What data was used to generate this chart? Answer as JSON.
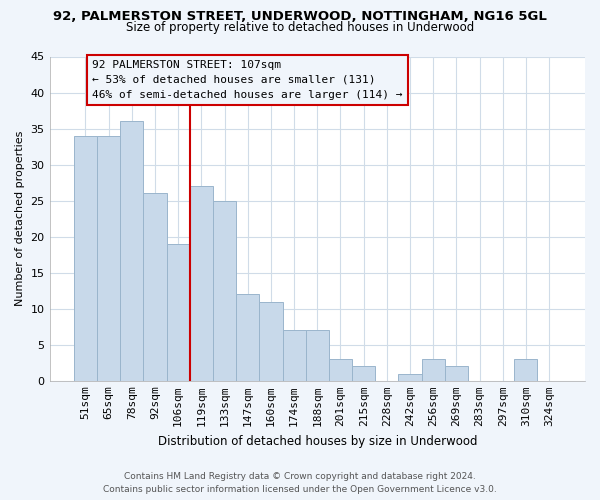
{
  "title": "92, PALMERSTON STREET, UNDERWOOD, NOTTINGHAM, NG16 5GL",
  "subtitle": "Size of property relative to detached houses in Underwood",
  "xlabel": "Distribution of detached houses by size in Underwood",
  "ylabel": "Number of detached properties",
  "bar_labels": [
    "51sqm",
    "65sqm",
    "78sqm",
    "92sqm",
    "106sqm",
    "119sqm",
    "133sqm",
    "147sqm",
    "160sqm",
    "174sqm",
    "188sqm",
    "201sqm",
    "215sqm",
    "228sqm",
    "242sqm",
    "256sqm",
    "269sqm",
    "283sqm",
    "297sqm",
    "310sqm",
    "324sqm"
  ],
  "bar_values": [
    34,
    34,
    36,
    26,
    19,
    27,
    25,
    12,
    11,
    7,
    7,
    3,
    2,
    0,
    1,
    3,
    2,
    0,
    0,
    3,
    0
  ],
  "bar_color": "#c8d9ea",
  "bar_edge_color": "#9ab5cc",
  "vline_x": 4.5,
  "vline_color": "#cc0000",
  "annotation_title": "92 PALMERSTON STREET: 107sqm",
  "annotation_line1": "← 53% of detached houses are smaller (131)",
  "annotation_line2": "46% of semi-detached houses are larger (114) →",
  "annotation_box_edge": "#cc0000",
  "ylim": [
    0,
    45
  ],
  "yticks": [
    0,
    5,
    10,
    15,
    20,
    25,
    30,
    35,
    40,
    45
  ],
  "footer1": "Contains HM Land Registry data © Crown copyright and database right 2024.",
  "footer2": "Contains public sector information licensed under the Open Government Licence v3.0.",
  "bg_color": "#f0f5fb",
  "plot_bg_color": "#ffffff",
  "grid_color": "#d0dce8"
}
